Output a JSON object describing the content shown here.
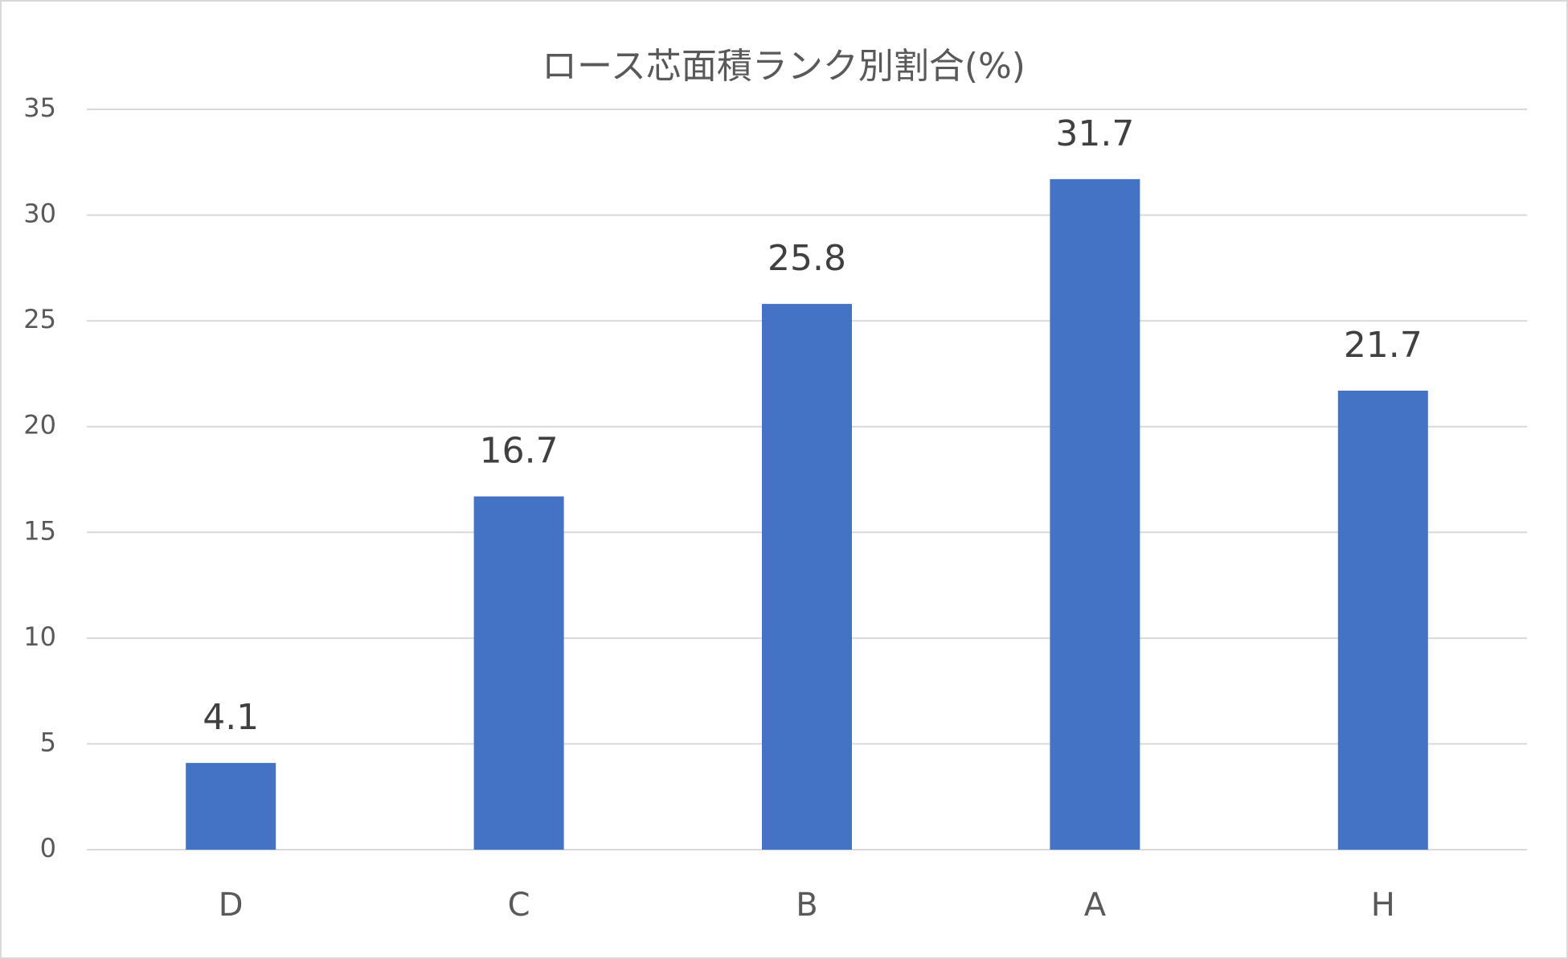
{
  "chart_data": {
    "type": "bar",
    "title": "ロース芯面積ランク別割合(%)",
    "categories": [
      "D",
      "C",
      "B",
      "A",
      "H"
    ],
    "values": [
      4.1,
      16.7,
      25.8,
      31.7,
      21.7
    ],
    "value_labels": [
      "4.1",
      "16.7",
      "25.8",
      "31.7",
      "21.7"
    ],
    "color": "#4472c4",
    "ylim": [
      0,
      35
    ],
    "yticks": [
      0,
      5,
      10,
      15,
      20,
      25,
      30,
      35
    ],
    "grid": true
  }
}
